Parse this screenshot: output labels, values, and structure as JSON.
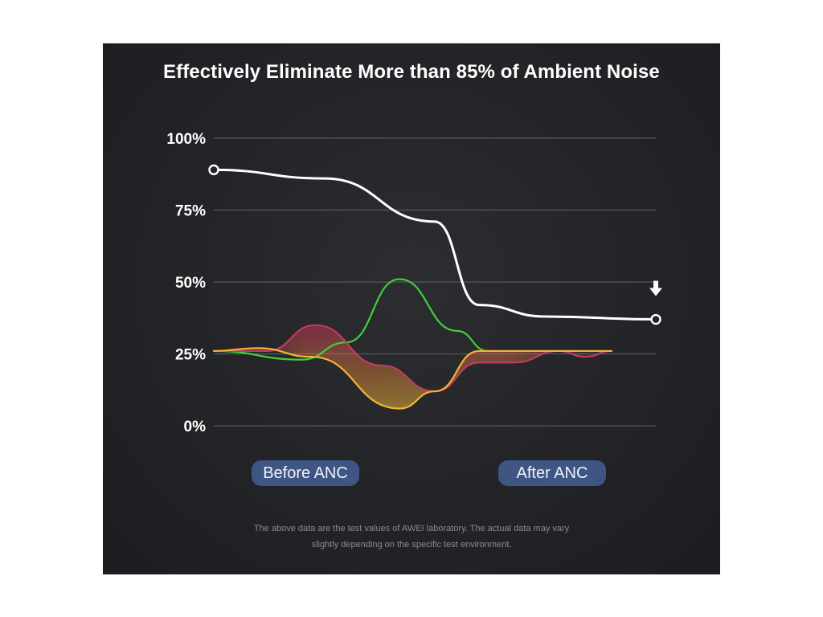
{
  "chart_data": {
    "type": "line",
    "title": "Effectively Eliminate More than 85% of Ambient Noise",
    "ylim": [
      0,
      100
    ],
    "y_ticks": [
      "100%",
      "75%",
      "50%",
      "25%",
      "0%"
    ],
    "y_tick_values": [
      100,
      75,
      50,
      25,
      0
    ],
    "grid": true,
    "x_labels": [
      "Before ANC",
      "After ANC"
    ],
    "series": [
      {
        "color": "#ffffff",
        "x": [
          0,
          0.25,
          0.5,
          0.6,
          0.75,
          1
        ],
        "values": [
          89,
          86,
          71,
          42,
          38,
          37
        ],
        "marked_endpoints": true
      },
      {
        "color": "#3fd13b",
        "x": [
          0,
          0.2,
          0.3,
          0.42,
          0.55,
          0.62,
          0.75,
          0.9
        ],
        "values": [
          26,
          23,
          29,
          51,
          33,
          26,
          26,
          26
        ]
      },
      {
        "color": "#c03a66",
        "x": [
          0,
          0.12,
          0.23,
          0.38,
          0.5,
          0.6,
          0.68,
          0.78,
          0.84,
          0.9
        ],
        "values": [
          26,
          26,
          35,
          21,
          12,
          22,
          22,
          26,
          24,
          26
        ]
      },
      {
        "color": "#f3b438",
        "x": [
          0,
          0.1,
          0.22,
          0.42,
          0.5,
          0.6,
          0.7,
          0.9
        ],
        "values": [
          26,
          27,
          24,
          6,
          12,
          26,
          26,
          26
        ]
      }
    ],
    "annotation": {
      "type": "arrow-down",
      "color": "#ffffff"
    }
  },
  "buttons": {
    "before_label": "Before ANC",
    "after_label": "After ANC"
  },
  "footnote": {
    "line1": "The above data are the test values of AWEI laboratory. The actual data may vary",
    "line2": "slightly depending on the specific test environment."
  }
}
